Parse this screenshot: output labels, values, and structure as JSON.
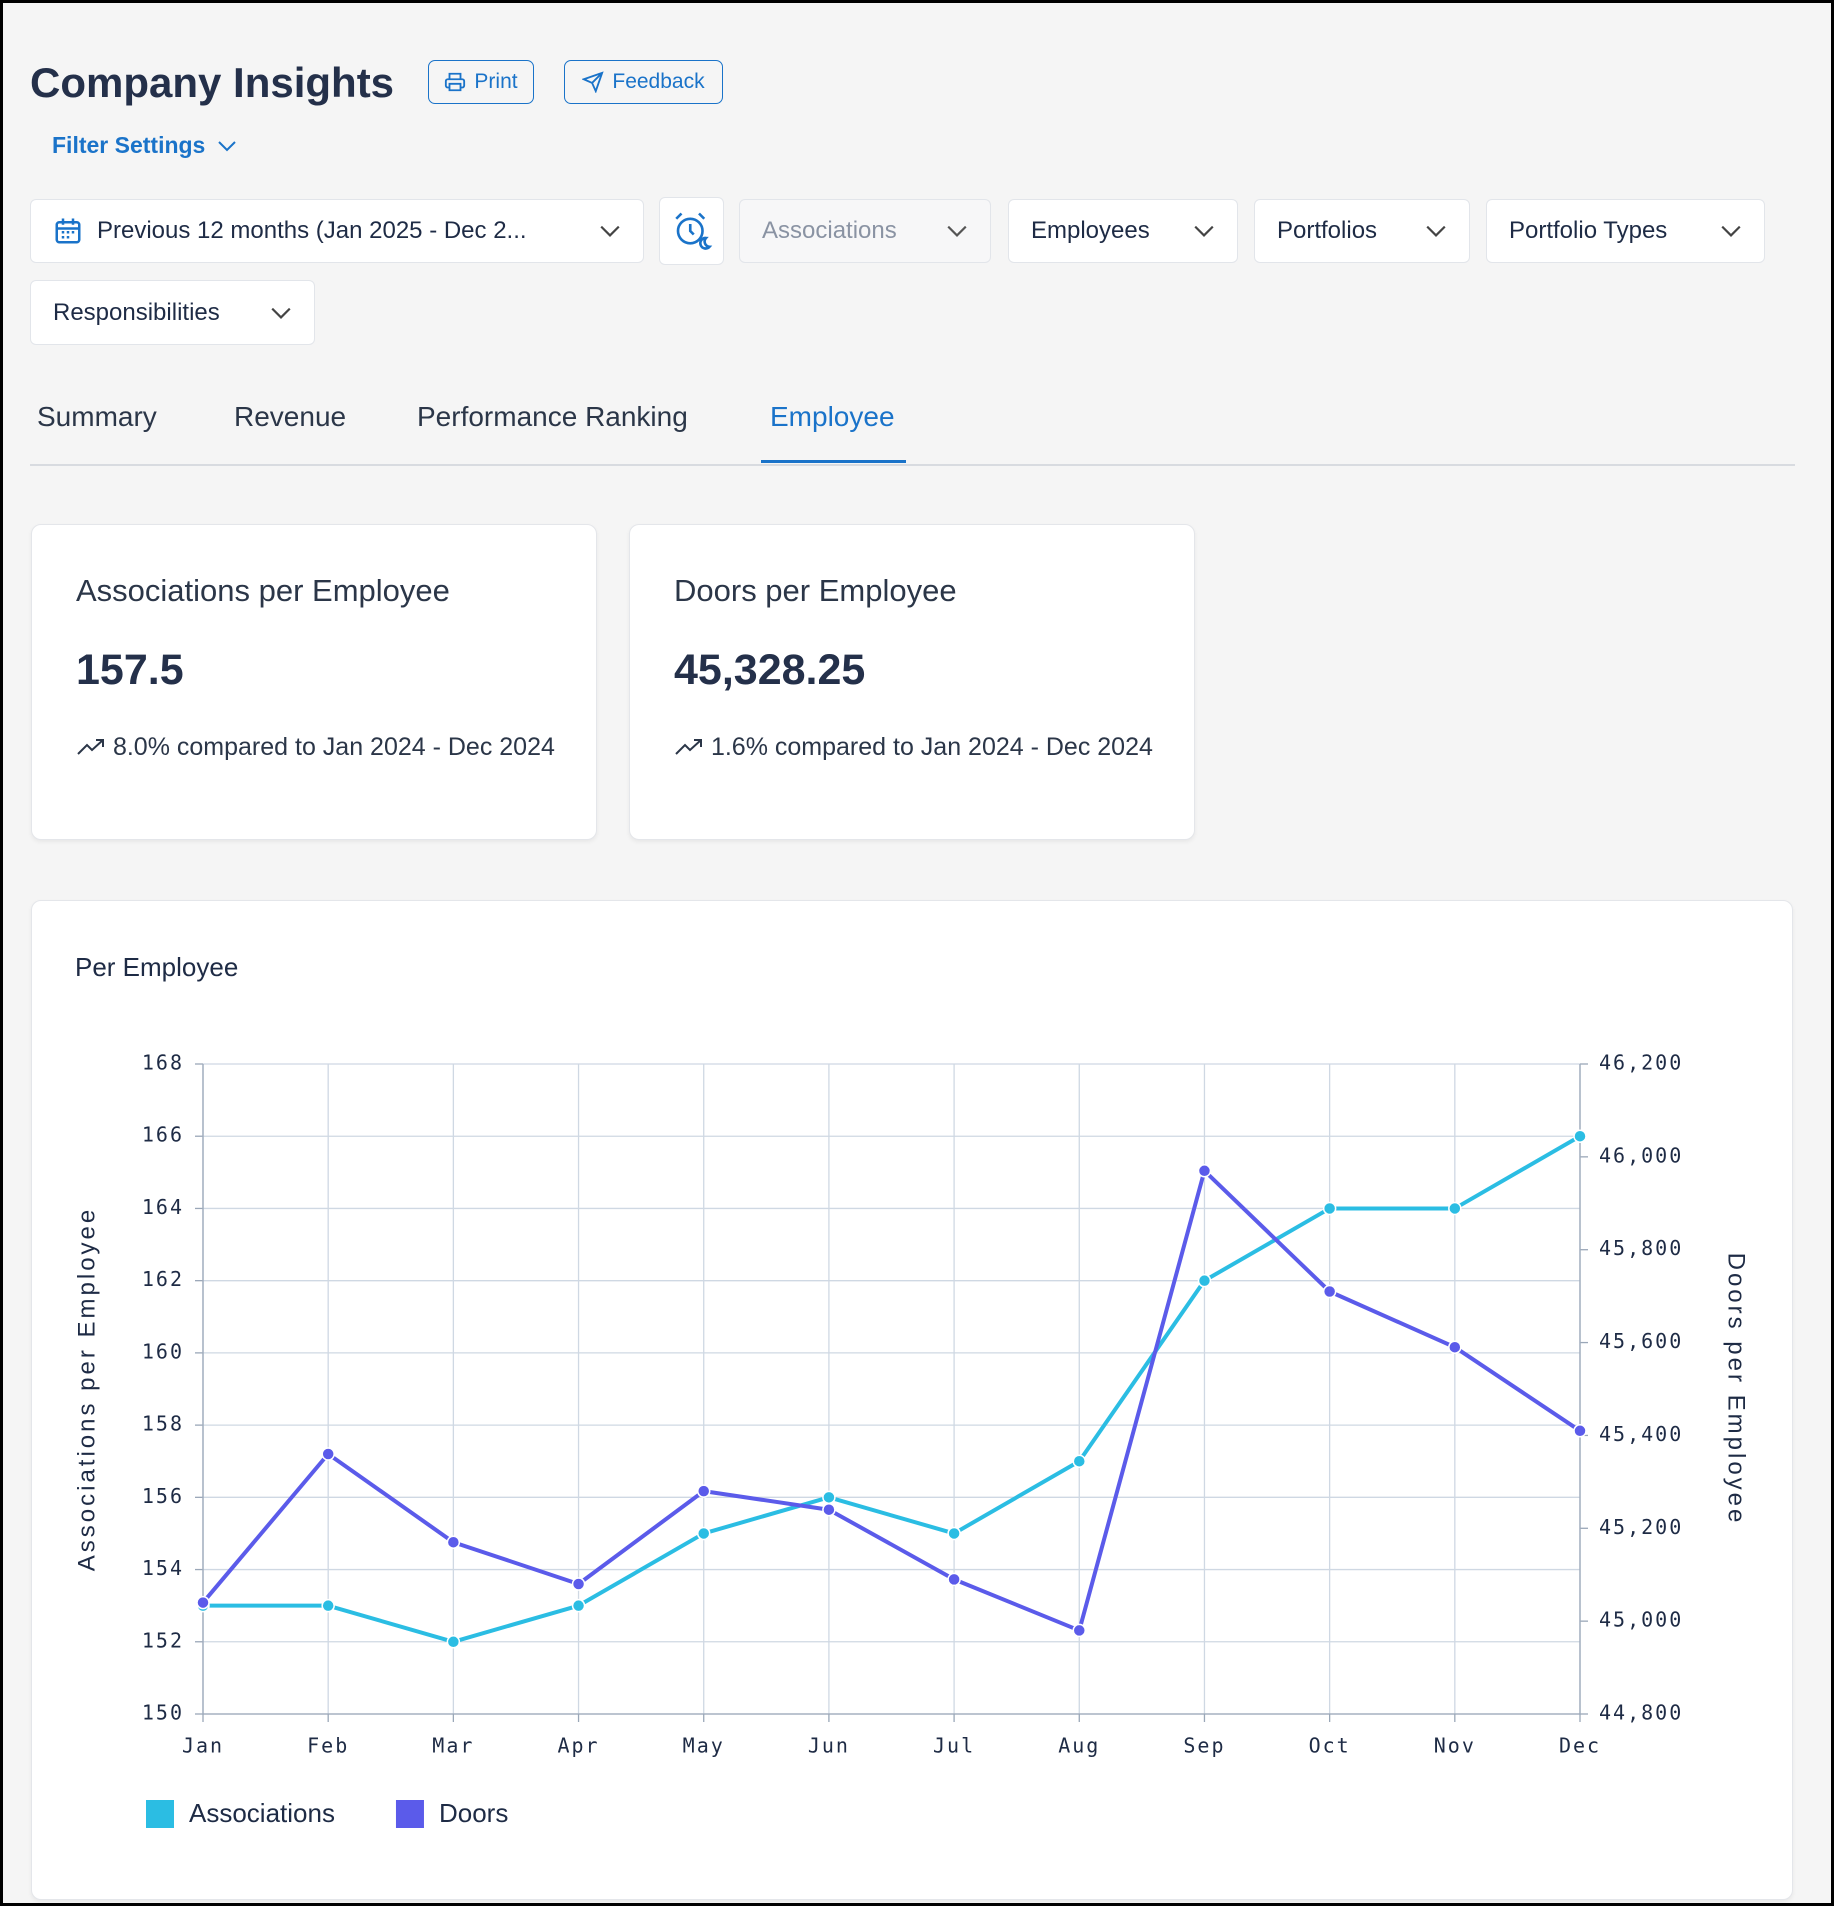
{
  "header": {
    "title": "Company Insights",
    "print": "Print",
    "feedback": "Feedback",
    "filter_settings": "Filter Settings"
  },
  "filters": [
    "Previous 12 months (Jan 2025 - Dec 2...",
    "Associations",
    "Employees",
    "Portfolios",
    "Portfolio Types",
    "Responsibilities"
  ],
  "tabs": [
    "Summary",
    "Revenue",
    "Performance Ranking",
    "Employee"
  ],
  "cards": [
    {
      "title": "Associations per Employee",
      "value": "157.5",
      "change": "8.0% compared to Jan 2024 - Dec 2024"
    },
    {
      "title": "Doors per Employee",
      "value": "45,328.25",
      "change": "1.6% compared to Jan 2024 - Dec 2024"
    }
  ],
  "chart_data": {
    "type": "line",
    "title": "Per Employee",
    "categories": [
      "Jan",
      "Feb",
      "Mar",
      "Apr",
      "May",
      "Jun",
      "Jul",
      "Aug",
      "Sep",
      "Oct",
      "Nov",
      "Dec"
    ],
    "y_label": "Associations per Employee",
    "y2_label": "Doors per Employee",
    "ylim": [
      150,
      168
    ],
    "yticks": [
      150,
      152,
      154,
      156,
      158,
      160,
      162,
      164,
      166,
      168
    ],
    "y2lim": [
      44800,
      46200
    ],
    "y2ticks": [
      {
        "value": 44800,
        "label": "44,800"
      },
      {
        "value": 45000,
        "label": "45,000"
      },
      {
        "value": 45200,
        "label": "45,200"
      },
      {
        "value": 45400,
        "label": "45,400"
      },
      {
        "value": 45600,
        "label": "45,600"
      },
      {
        "value": 45800,
        "label": "45,800"
      },
      {
        "value": 46000,
        "label": "46,000"
      },
      {
        "value": 46200,
        "label": "46,200"
      }
    ],
    "grid": true,
    "legend": "bottom-left",
    "series": [
      {
        "name": "Associations",
        "color": "#2bbde3",
        "values": [
          153,
          153,
          152,
          153,
          155,
          156,
          155,
          157,
          162,
          164,
          164,
          166
        ]
      },
      {
        "name": "Doors",
        "color": "#5b5bea",
        "axis": "y2",
        "values": [
          45040,
          45360,
          45170,
          45080,
          45280,
          45240,
          45090,
          44980,
          45970,
          45710,
          45590,
          45410
        ]
      }
    ]
  }
}
